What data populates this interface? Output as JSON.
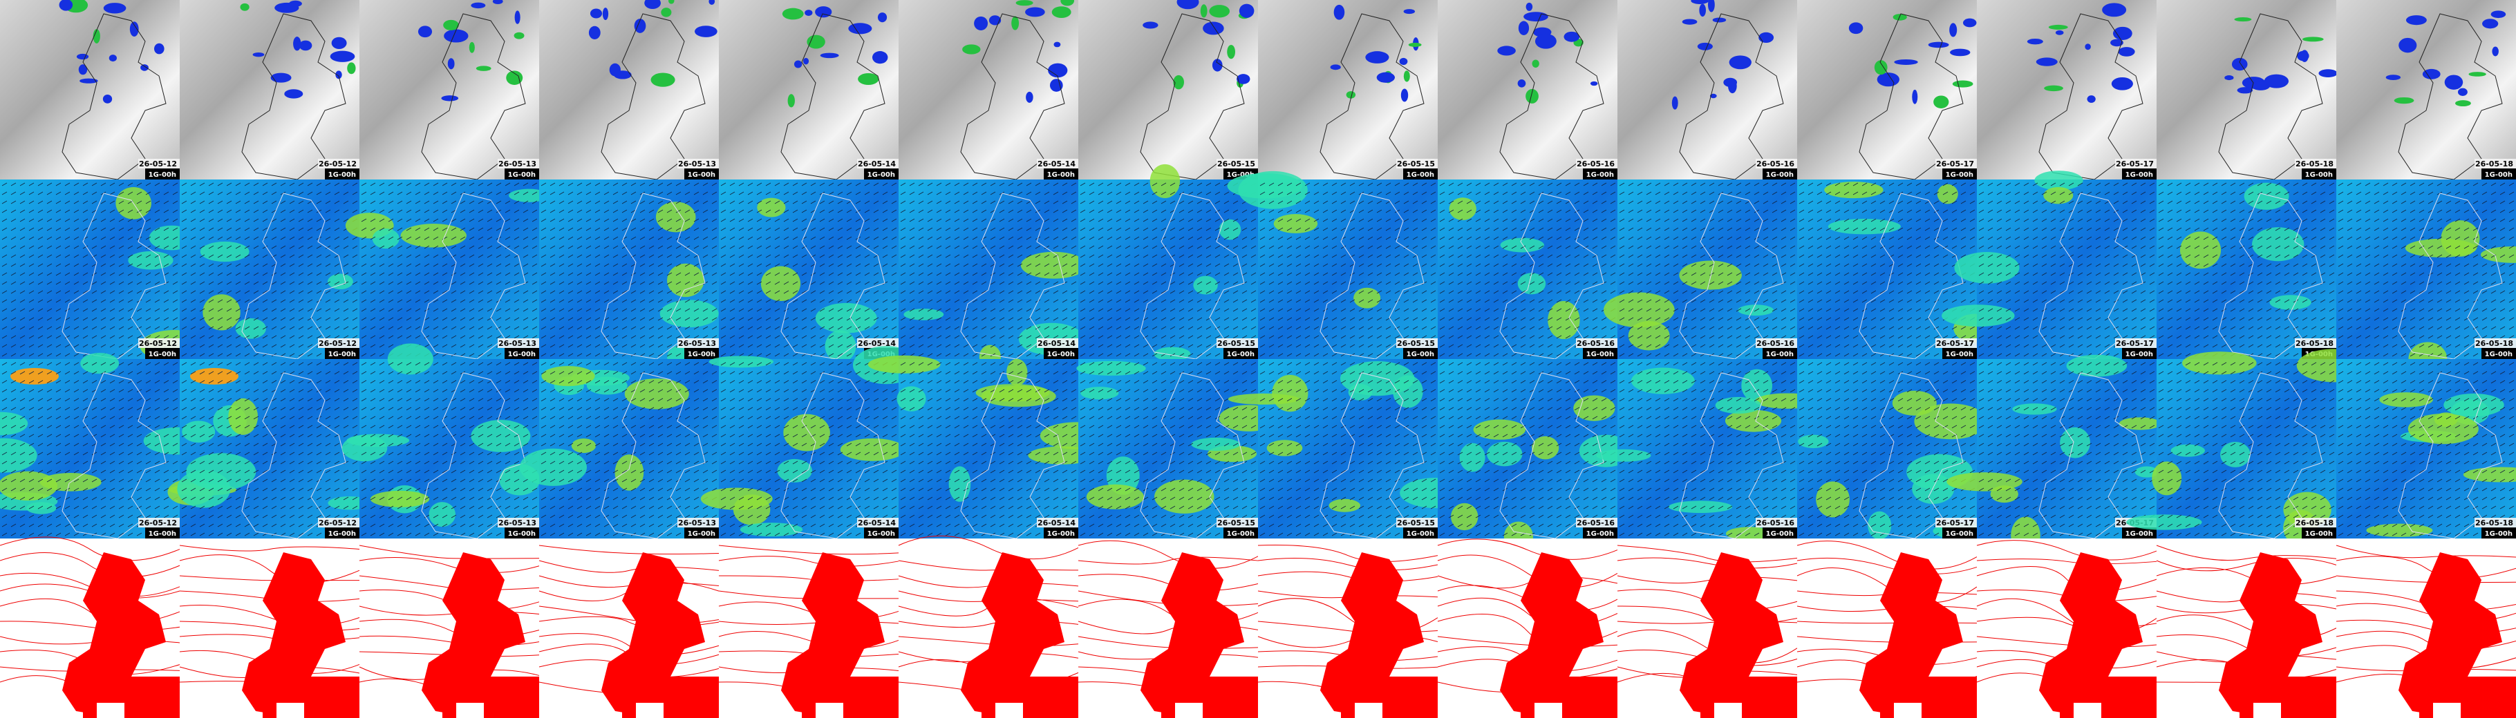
{
  "columns": [
    {
      "date": "26-05-12",
      "run": "1G-00h"
    },
    {
      "date": "26-05-12",
      "run": "1G-00h"
    },
    {
      "date": "26-05-13",
      "run": "1G-00h"
    },
    {
      "date": "26-05-13",
      "run": "1G-00h"
    },
    {
      "date": "26-05-14",
      "run": "1G-00h"
    },
    {
      "date": "26-05-14",
      "run": "1G-00h"
    },
    {
      "date": "26-05-15",
      "run": "1G-00h"
    },
    {
      "date": "26-05-15",
      "run": "1G-00h"
    },
    {
      "date": "26-05-16",
      "run": "1G-00h"
    },
    {
      "date": "26-05-16",
      "run": "1G-00h"
    },
    {
      "date": "26-05-17",
      "run": "1G-00h"
    },
    {
      "date": "26-05-17",
      "run": "1G-00h"
    },
    {
      "date": "26-05-18",
      "run": "1G-00h"
    },
    {
      "date": "26-05-18",
      "run": "1G-00h"
    }
  ]
}
